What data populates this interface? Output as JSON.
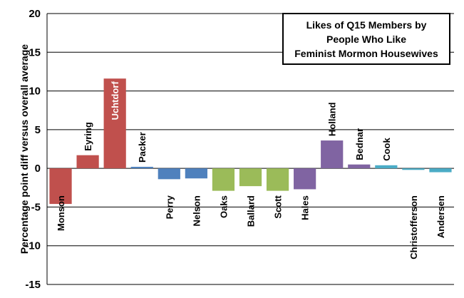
{
  "chart_data": {
    "type": "bar",
    "title": "Likes of Q15 Members by\nPeople Who  Like\nFeminist Mormon  Housewives",
    "ylabel": "Percentage point  diff versus overall average",
    "xlabel": "",
    "ylim": [
      -15,
      20
    ],
    "yticks": [
      "-15",
      "-10",
      "-5",
      "0",
      "5",
      "10",
      "15",
      "20"
    ],
    "grid": true,
    "categories": [
      "Monson",
      "Eyring",
      "Uchtdorf",
      "Packer",
      "Perry",
      "Nelson",
      "Oaks",
      "Ballard",
      "Scott",
      "Hales",
      "Holland",
      "Bednar",
      "Cook",
      "Christofferson",
      "Andersen"
    ],
    "values": [
      -4.6,
      1.7,
      11.6,
      0.2,
      -1.4,
      -1.3,
      -2.9,
      -2.3,
      -2.9,
      -2.7,
      3.6,
      0.5,
      0.4,
      -0.2,
      -0.5
    ],
    "colors": [
      "#c0504d",
      "#c0504d",
      "#c0504d",
      "#4f81bd",
      "#4f81bd",
      "#4f81bd",
      "#9bbb59",
      "#9bbb59",
      "#9bbb59",
      "#8064a2",
      "#8064a2",
      "#8064a2",
      "#4bacc6",
      "#4bacc6",
      "#4bacc6"
    ]
  }
}
